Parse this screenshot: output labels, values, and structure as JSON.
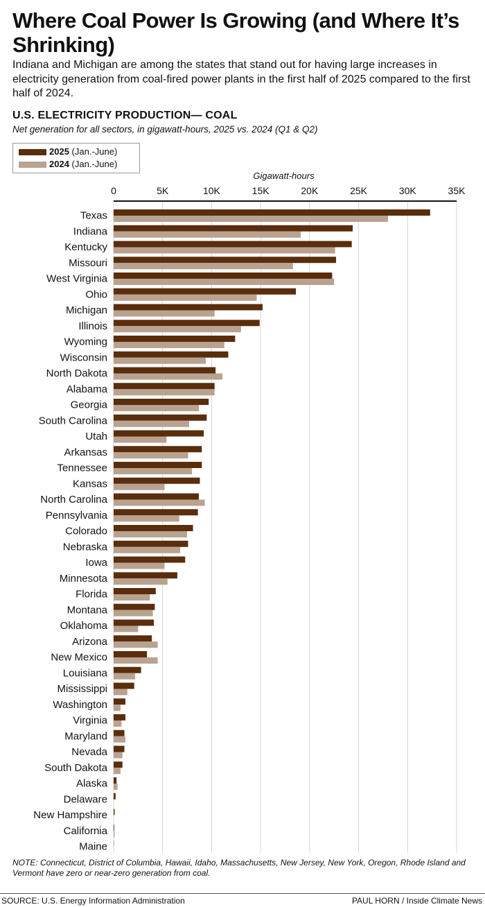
{
  "headline": "Where Coal Power Is Growing (and Where It’s Shrinking)",
  "deck": "Indiana and Michigan are among the states that stand out for having large increases in electricity generation from coal-fired power plants in the first half of 2025 compared to the first half of 2024.",
  "note": "NOTE: Connecticut, District of Columbia, Hawaii, Idaho, Massachusetts, New Jersey, New York, Oregon, Rhode Island and Vermont have zero or near-zero generation from coal.",
  "source": "SOURCE: U.S. Energy Information Administration",
  "credit": "PAUL HORN / Inside Climate News",
  "chart_data": {
    "type": "bar",
    "orientation": "horizontal",
    "title": "U.S. ELECTRICITY PRODUCTION— COAL",
    "subtitle": "Net generation for all sectors, in gigawatt-hours, 2025 vs. 2024 (Q1 & Q2)",
    "xlabel": "Gigawatt-hours",
    "ylabel": "",
    "xlim": [
      0,
      35000
    ],
    "ticks": [
      {
        "value": 0,
        "label": "0"
      },
      {
        "value": 5000,
        "label": "5K"
      },
      {
        "value": 10000,
        "label": "10K"
      },
      {
        "value": 15000,
        "label": "15K"
      },
      {
        "value": 20000,
        "label": "20K"
      },
      {
        "value": 25000,
        "label": "25K"
      },
      {
        "value": 30000,
        "label": "30K"
      },
      {
        "value": 35000,
        "label": "35K"
      }
    ],
    "grid": true,
    "legend_position": "top-left",
    "categories": [
      "Texas",
      "Indiana",
      "Kentucky",
      "Missouri",
      "West Virginia",
      "Ohio",
      "Michigan",
      "Illinois",
      "Wyoming",
      "Wisconsin",
      "North Dakota",
      "Alabama",
      "Georgia",
      "South Carolina",
      "Utah",
      "Arkansas",
      "Tennessee",
      "Kansas",
      "North Carolina",
      "Pennsylvania",
      "Colorado",
      "Nebraska",
      "Iowa",
      "Minnesota",
      "Florida",
      "Montana",
      "Oklahoma",
      "Arizona",
      "New Mexico",
      "Louisiana",
      "Mississippi",
      "Washington",
      "Virginia",
      "Maryland",
      "Nevada",
      "South Dakota",
      "Alaska",
      "Delaware",
      "New Hampshire",
      "California",
      "Maine"
    ],
    "series": [
      {
        "name": "2025",
        "legend_note": "(Jan.-June)",
        "color": "#5a2d0c",
        "values": [
          32300,
          24400,
          24300,
          22700,
          22300,
          18600,
          15200,
          14900,
          12400,
          11700,
          10400,
          10300,
          9700,
          9500,
          9200,
          9000,
          9000,
          8800,
          8700,
          8600,
          8100,
          7600,
          7300,
          6500,
          4300,
          4200,
          4100,
          3900,
          3400,
          2800,
          2100,
          1200,
          1200,
          1100,
          1100,
          900,
          300,
          200,
          100,
          60,
          20
        ]
      },
      {
        "name": "2024",
        "legend_note": "(Jan.-June)",
        "color": "#b8a290",
        "values": [
          28000,
          19100,
          22600,
          18300,
          22500,
          14600,
          10300,
          13000,
          11300,
          9400,
          11100,
          10300,
          8700,
          7700,
          5400,
          7600,
          8000,
          5200,
          9300,
          6700,
          7500,
          6800,
          5200,
          5500,
          3700,
          4000,
          2500,
          4500,
          4500,
          2200,
          1400,
          700,
          800,
          1200,
          900,
          700,
          400,
          0,
          0,
          100,
          0
        ]
      }
    ]
  }
}
